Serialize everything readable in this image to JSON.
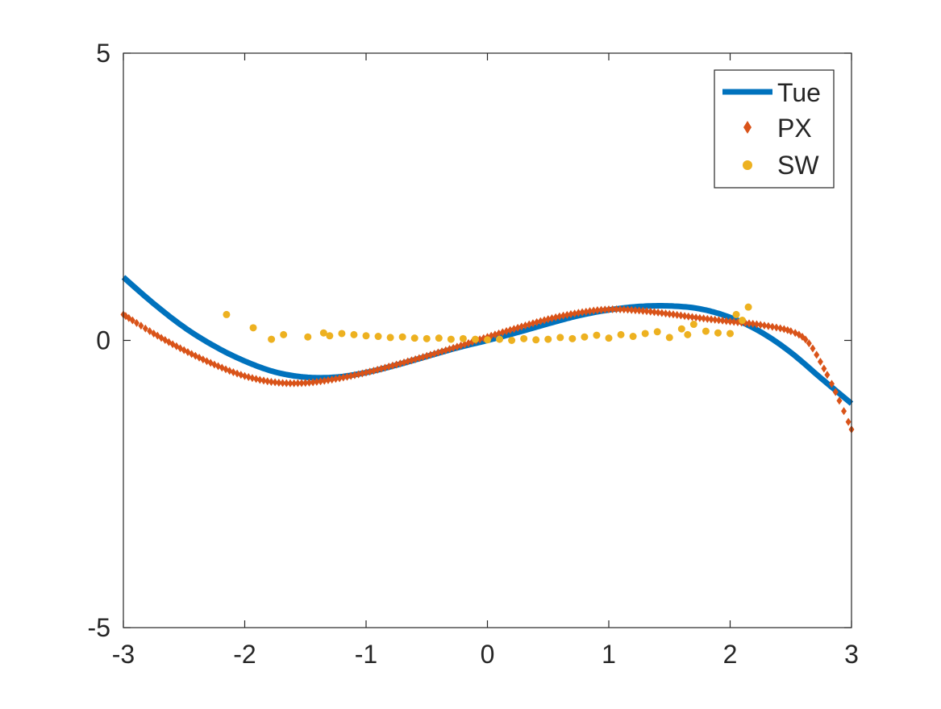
{
  "chart_data": {
    "type": "line",
    "title": "",
    "xlabel": "",
    "ylabel": "",
    "xlim": [
      -3,
      3
    ],
    "ylim": [
      -5,
      5
    ],
    "xticks": [
      -3,
      -2,
      -1,
      0,
      1,
      2,
      3
    ],
    "yticks": [
      -5,
      0,
      5
    ],
    "xtick_labels": [
      "-3",
      "-2",
      "-1",
      "0",
      "1",
      "2",
      "3"
    ],
    "ytick_labels": [
      "-5",
      "0",
      "5"
    ],
    "grid": false,
    "box": true,
    "legend": {
      "placement": "top-right",
      "entries": [
        "Tue",
        "PX",
        "SW"
      ]
    },
    "series": [
      {
        "name": "Tue",
        "style": "line",
        "color": "#0072BD",
        "x": [
          -3.0,
          -2.75,
          -2.5,
          -2.25,
          -2.0,
          -1.75,
          -1.5,
          -1.25,
          -1.0,
          -0.75,
          -0.5,
          -0.25,
          0.0,
          0.25,
          0.5,
          0.75,
          1.0,
          1.25,
          1.5,
          1.75,
          2.0,
          2.25,
          2.5,
          2.75,
          3.0
        ],
        "y": [
          1.1,
          0.64,
          0.23,
          -0.1,
          -0.36,
          -0.55,
          -0.64,
          -0.64,
          -0.56,
          -0.43,
          -0.28,
          -0.13,
          0.0,
          0.14,
          0.29,
          0.43,
          0.53,
          0.59,
          0.6,
          0.55,
          0.4,
          0.15,
          -0.21,
          -0.66,
          -1.1
        ]
      },
      {
        "name": "PX",
        "style": "diamond-markers",
        "color": "#D95319",
        "x": [
          -3.0,
          -2.75,
          -2.5,
          -2.25,
          -2.0,
          -1.75,
          -1.5,
          -1.25,
          -1.0,
          -0.75,
          -0.5,
          -0.25,
          0.0,
          0.25,
          0.5,
          0.75,
          1.0,
          1.25,
          1.5,
          1.75,
          2.0,
          2.25,
          2.5,
          2.65,
          2.8,
          2.9,
          3.0
        ],
        "y": [
          0.45,
          0.12,
          -0.17,
          -0.42,
          -0.62,
          -0.73,
          -0.74,
          -0.67,
          -0.56,
          -0.42,
          -0.27,
          -0.11,
          0.06,
          0.22,
          0.37,
          0.48,
          0.54,
          0.52,
          0.46,
          0.39,
          0.33,
          0.27,
          0.16,
          -0.05,
          -0.6,
          -1.05,
          -1.55
        ]
      },
      {
        "name": "SW",
        "style": "dot-markers",
        "color": "#EDB120",
        "x": [
          -2.15,
          -1.93,
          -1.78,
          -1.68,
          -1.48,
          -1.35,
          -1.3,
          -1.2,
          -1.1,
          -1.0,
          -0.9,
          -0.8,
          -0.7,
          -0.6,
          -0.5,
          -0.4,
          -0.3,
          -0.2,
          -0.1,
          0.0,
          0.1,
          0.2,
          0.3,
          0.4,
          0.5,
          0.6,
          0.7,
          0.8,
          0.9,
          1.0,
          1.1,
          1.2,
          1.3,
          1.4,
          1.5,
          1.6,
          1.65,
          1.7,
          1.8,
          1.9,
          2.0,
          2.05,
          2.1,
          2.15
        ],
        "y": [
          0.45,
          0.22,
          0.02,
          0.1,
          0.06,
          0.13,
          0.08,
          0.12,
          0.1,
          0.08,
          0.07,
          0.05,
          0.06,
          0.04,
          0.03,
          0.04,
          0.02,
          0.03,
          0.02,
          0.01,
          0.02,
          0.0,
          0.03,
          0.01,
          0.02,
          0.05,
          0.03,
          0.06,
          0.09,
          0.04,
          0.1,
          0.07,
          0.12,
          0.15,
          0.05,
          0.2,
          0.1,
          0.28,
          0.16,
          0.13,
          0.12,
          0.45,
          0.35,
          0.58
        ]
      }
    ]
  }
}
